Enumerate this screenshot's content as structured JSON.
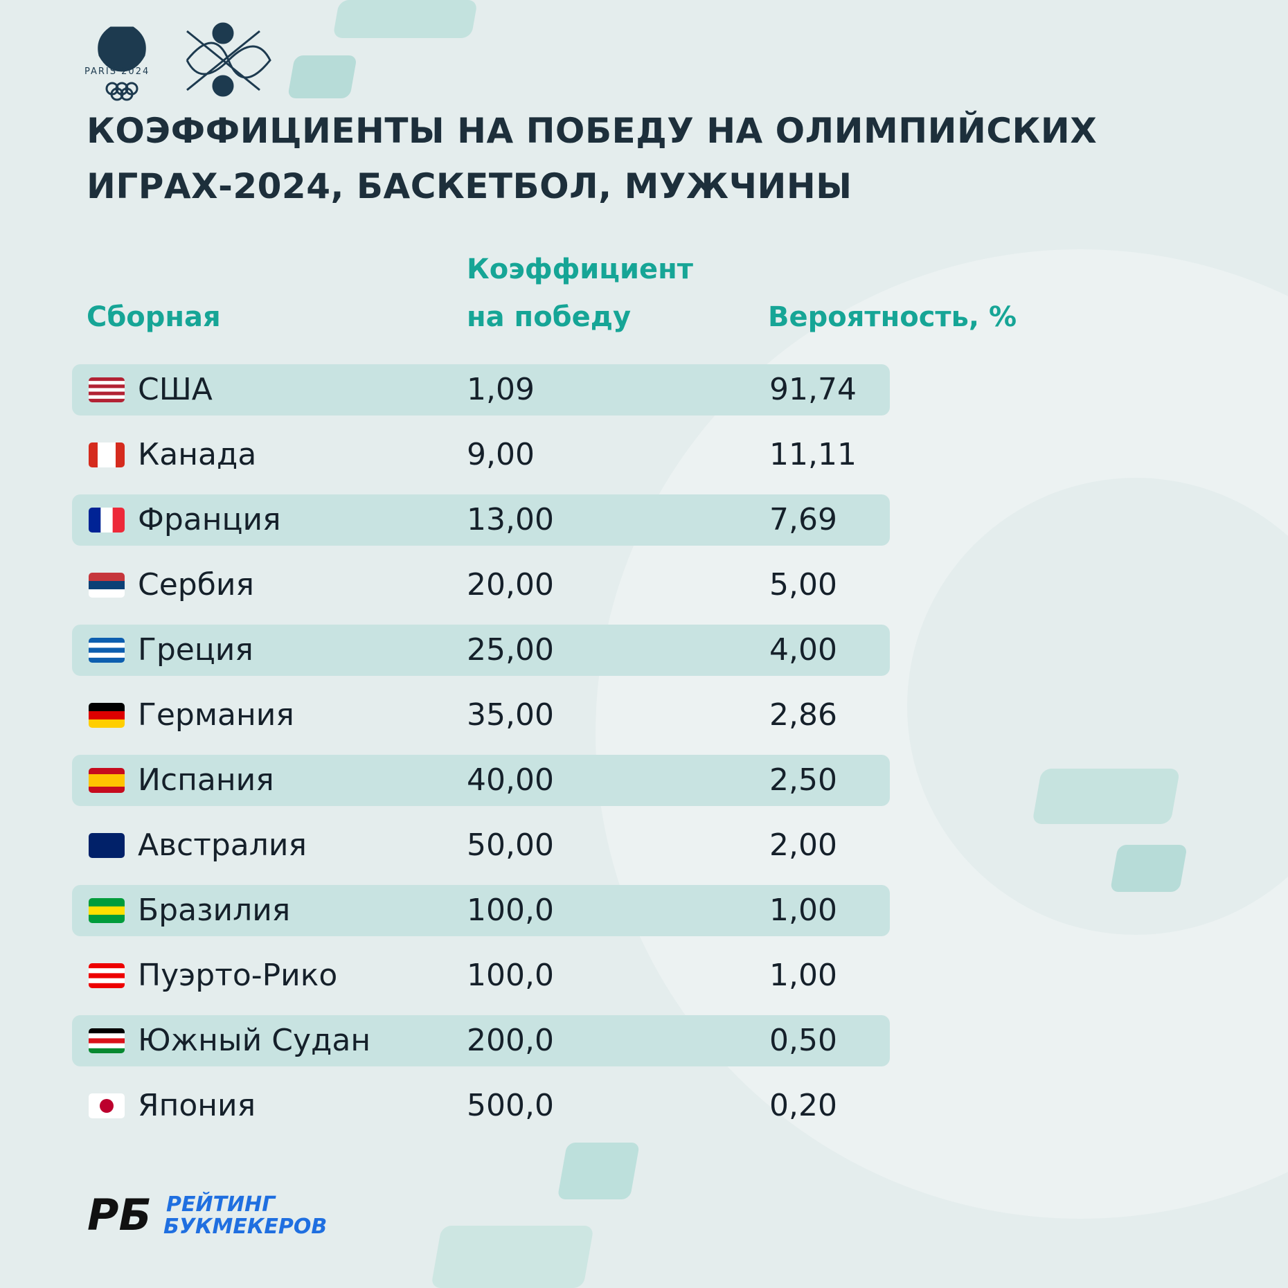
{
  "logos": {
    "olympic": "PARIS 2024",
    "brand_mark": "РБ",
    "brand_line1": "РЕЙТИНГ",
    "brand_line2": "БУКМЕКЕРОВ"
  },
  "header": {
    "title": [
      "КОЭФФИЦИЕНТЫ НА ПОБЕДУ НА ОЛИМПИЙСКИХ",
      "ИГРАХ-2024, БАСКЕТБОЛ, МУЖЧИНЫ"
    ]
  },
  "table": {
    "columns": [
      [
        "Сборная"
      ],
      [
        "Коэффициент",
        "на победу"
      ],
      [
        "Вероятность, %"
      ]
    ],
    "rows": [
      [
        "США",
        "1,09",
        "91,74"
      ],
      [
        "Канада",
        "9,00",
        "11,11"
      ],
      [
        "Франция",
        "13,00",
        "7,69"
      ],
      [
        "Сербия",
        "20,00",
        "5,00"
      ],
      [
        "Греция",
        "25,00",
        "4,00"
      ],
      [
        "Германия",
        "35,00",
        "2,86"
      ],
      [
        "Испания",
        "40,00",
        "2,50"
      ],
      [
        "Австралия",
        "50,00",
        "2,00"
      ],
      [
        "Бразилия",
        "100,0",
        "1,00"
      ],
      [
        "Пуэрто-Рико",
        "100,0",
        "1,00"
      ],
      [
        "Южный Судан",
        "200,0",
        "0,50"
      ],
      [
        "Япония",
        "500,0",
        "0,20"
      ]
    ]
  }
}
